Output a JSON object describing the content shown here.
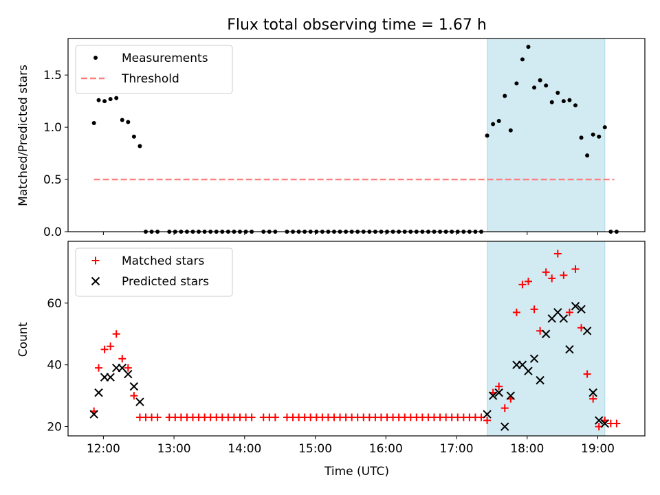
{
  "chart_data": [
    {
      "type": "scatter",
      "title": "Flux total observing time = 1.67 h",
      "xlabel": "",
      "ylabel": "Matched/Predicted stars",
      "xlim": [
        "11:30",
        "19:40"
      ],
      "ylim": [
        0,
        1.85
      ],
      "x_ticks": [
        "12:00",
        "13:00",
        "14:00",
        "15:00",
        "16:00",
        "17:00",
        "18:00",
        "19:00"
      ],
      "y_ticks": [
        0.0,
        0.5,
        1.0,
        1.5
      ],
      "y_tick_labels": [
        "0.0",
        "0.5",
        "1.0",
        "1.5"
      ],
      "legend_position": "top-left",
      "shaded_region": {
        "x_start": "17:26",
        "x_end": "19:06",
        "color": "#add8e6"
      },
      "threshold": {
        "name": "Threshold",
        "y": 0.5,
        "x_start": "11:52",
        "x_end": "19:14",
        "color": "#ff7f7f",
        "style": "dashed"
      },
      "series": [
        {
          "name": "Measurements",
          "color": "#000000",
          "marker": "dot",
          "points": [
            [
              "11:52",
              1.04
            ],
            [
              "11:56",
              1.26
            ],
            [
              "12:01",
              1.25
            ],
            [
              "12:06",
              1.27
            ],
            [
              "12:11",
              1.28
            ],
            [
              "12:16",
              1.07
            ],
            [
              "12:21",
              1.05
            ],
            [
              "12:26",
              0.91
            ],
            [
              "12:31",
              0.82
            ],
            [
              "12:36",
              0
            ],
            [
              "12:41",
              0
            ],
            [
              "12:46",
              0
            ],
            [
              "12:56",
              0
            ],
            [
              "13:01",
              0
            ],
            [
              "13:06",
              0
            ],
            [
              "13:11",
              0
            ],
            [
              "13:16",
              0
            ],
            [
              "13:21",
              0
            ],
            [
              "13:26",
              0
            ],
            [
              "13:31",
              0
            ],
            [
              "13:36",
              0
            ],
            [
              "13:41",
              0
            ],
            [
              "13:46",
              0
            ],
            [
              "13:51",
              0
            ],
            [
              "13:56",
              0
            ],
            [
              "14:01",
              0
            ],
            [
              "14:06",
              0
            ],
            [
              "14:16",
              0
            ],
            [
              "14:21",
              0
            ],
            [
              "14:26",
              0
            ],
            [
              "14:36",
              0
            ],
            [
              "14:41",
              0
            ],
            [
              "14:46",
              0
            ],
            [
              "14:51",
              0
            ],
            [
              "14:56",
              0
            ],
            [
              "15:01",
              0
            ],
            [
              "15:06",
              0
            ],
            [
              "15:11",
              0
            ],
            [
              "15:16",
              0
            ],
            [
              "15:21",
              0
            ],
            [
              "15:26",
              0
            ],
            [
              "15:31",
              0
            ],
            [
              "15:36",
              0
            ],
            [
              "15:41",
              0
            ],
            [
              "15:46",
              0
            ],
            [
              "15:51",
              0
            ],
            [
              "15:56",
              0
            ],
            [
              "16:01",
              0
            ],
            [
              "16:06",
              0
            ],
            [
              "16:11",
              0
            ],
            [
              "16:16",
              0
            ],
            [
              "16:21",
              0
            ],
            [
              "16:26",
              0
            ],
            [
              "16:31",
              0
            ],
            [
              "16:36",
              0
            ],
            [
              "16:41",
              0
            ],
            [
              "16:46",
              0
            ],
            [
              "16:51",
              0
            ],
            [
              "16:56",
              0
            ],
            [
              "17:01",
              0
            ],
            [
              "17:06",
              0
            ],
            [
              "17:11",
              0
            ],
            [
              "17:16",
              0
            ],
            [
              "17:21",
              0
            ],
            [
              "17:26",
              0.92
            ],
            [
              "17:31",
              1.03
            ],
            [
              "17:36",
              1.06
            ],
            [
              "17:41",
              1.3
            ],
            [
              "17:46",
              0.97
            ],
            [
              "17:51",
              1.42
            ],
            [
              "17:56",
              1.65
            ],
            [
              "18:01",
              1.77
            ],
            [
              "18:06",
              1.38
            ],
            [
              "18:11",
              1.45
            ],
            [
              "18:16",
              1.4
            ],
            [
              "18:21",
              1.24
            ],
            [
              "18:26",
              1.33
            ],
            [
              "18:31",
              1.25
            ],
            [
              "18:36",
              1.26
            ],
            [
              "18:41",
              1.21
            ],
            [
              "18:46",
              0.9
            ],
            [
              "18:51",
              0.73
            ],
            [
              "18:56",
              0.93
            ],
            [
              "19:01",
              0.91
            ],
            [
              "19:06",
              1.0
            ],
            [
              "19:11",
              0
            ],
            [
              "19:16",
              0
            ]
          ]
        }
      ]
    },
    {
      "type": "scatter",
      "title": "",
      "xlabel": "Time (UTC)",
      "ylabel": "Count",
      "xlim": [
        "11:30",
        "19:40"
      ],
      "ylim": [
        17,
        80
      ],
      "x_ticks": [
        "12:00",
        "13:00",
        "14:00",
        "15:00",
        "16:00",
        "17:00",
        "18:00",
        "19:00"
      ],
      "y_ticks": [
        20,
        40,
        60
      ],
      "y_tick_labels": [
        "20",
        "40",
        "60"
      ],
      "legend_position": "top-left",
      "shaded_region": {
        "x_start": "17:26",
        "x_end": "19:06",
        "color": "#add8e6"
      },
      "series": [
        {
          "name": "Matched stars",
          "color": "#ff0000",
          "marker": "plus",
          "points": [
            [
              "11:52",
              25
            ],
            [
              "11:56",
              39
            ],
            [
              "12:01",
              45
            ],
            [
              "12:06",
              46
            ],
            [
              "12:11",
              50
            ],
            [
              "12:16",
              42
            ],
            [
              "12:21",
              39
            ],
            [
              "12:26",
              30
            ],
            [
              "12:31",
              23
            ],
            [
              "12:36",
              23
            ],
            [
              "12:41",
              23
            ],
            [
              "12:46",
              23
            ],
            [
              "12:56",
              23
            ],
            [
              "13:01",
              23
            ],
            [
              "13:06",
              23
            ],
            [
              "13:11",
              23
            ],
            [
              "13:16",
              23
            ],
            [
              "13:21",
              23
            ],
            [
              "13:26",
              23
            ],
            [
              "13:31",
              23
            ],
            [
              "13:36",
              23
            ],
            [
              "13:41",
              23
            ],
            [
              "13:46",
              23
            ],
            [
              "13:51",
              23
            ],
            [
              "13:56",
              23
            ],
            [
              "14:01",
              23
            ],
            [
              "14:06",
              23
            ],
            [
              "14:16",
              23
            ],
            [
              "14:21",
              23
            ],
            [
              "14:26",
              23
            ],
            [
              "14:36",
              23
            ],
            [
              "14:41",
              23
            ],
            [
              "14:46",
              23
            ],
            [
              "14:51",
              23
            ],
            [
              "14:56",
              23
            ],
            [
              "15:01",
              23
            ],
            [
              "15:06",
              23
            ],
            [
              "15:11",
              23
            ],
            [
              "15:16",
              23
            ],
            [
              "15:21",
              23
            ],
            [
              "15:26",
              23
            ],
            [
              "15:31",
              23
            ],
            [
              "15:36",
              23
            ],
            [
              "15:41",
              23
            ],
            [
              "15:46",
              23
            ],
            [
              "15:51",
              23
            ],
            [
              "15:56",
              23
            ],
            [
              "16:01",
              23
            ],
            [
              "16:06",
              23
            ],
            [
              "16:11",
              23
            ],
            [
              "16:16",
              23
            ],
            [
              "16:21",
              23
            ],
            [
              "16:26",
              23
            ],
            [
              "16:31",
              23
            ],
            [
              "16:36",
              23
            ],
            [
              "16:41",
              23
            ],
            [
              "16:46",
              23
            ],
            [
              "16:51",
              23
            ],
            [
              "16:56",
              23
            ],
            [
              "17:01",
              23
            ],
            [
              "17:06",
              23
            ],
            [
              "17:11",
              23
            ],
            [
              "17:16",
              23
            ],
            [
              "17:21",
              23
            ],
            [
              "17:26",
              22
            ],
            [
              "17:31",
              31
            ],
            [
              "17:36",
              33
            ],
            [
              "17:41",
              26
            ],
            [
              "17:46",
              29
            ],
            [
              "17:51",
              57
            ],
            [
              "17:56",
              66
            ],
            [
              "18:01",
              67
            ],
            [
              "18:06",
              58
            ],
            [
              "18:11",
              51
            ],
            [
              "18:16",
              70
            ],
            [
              "18:21",
              68
            ],
            [
              "18:26",
              76
            ],
            [
              "18:31",
              69
            ],
            [
              "18:36",
              57
            ],
            [
              "18:41",
              71
            ],
            [
              "18:46",
              52
            ],
            [
              "18:51",
              37
            ],
            [
              "18:56",
              29
            ],
            [
              "19:01",
              20
            ],
            [
              "19:06",
              22
            ],
            [
              "19:11",
              21
            ],
            [
              "19:16",
              21
            ]
          ]
        },
        {
          "name": "Predicted stars",
          "color": "#000000",
          "marker": "x",
          "points": [
            [
              "11:52",
              24
            ],
            [
              "11:56",
              31
            ],
            [
              "12:01",
              36
            ],
            [
              "12:06",
              36
            ],
            [
              "12:11",
              39
            ],
            [
              "12:16",
              39
            ],
            [
              "12:21",
              37
            ],
            [
              "12:26",
              33
            ],
            [
              "12:31",
              28
            ],
            [
              "17:26",
              24
            ],
            [
              "17:31",
              30
            ],
            [
              "17:36",
              31
            ],
            [
              "17:41",
              20
            ],
            [
              "17:46",
              30
            ],
            [
              "17:51",
              40
            ],
            [
              "17:56",
              40
            ],
            [
              "18:01",
              38
            ],
            [
              "18:06",
              42
            ],
            [
              "18:11",
              35
            ],
            [
              "18:16",
              50
            ],
            [
              "18:21",
              55
            ],
            [
              "18:26",
              57
            ],
            [
              "18:31",
              55
            ],
            [
              "18:36",
              45
            ],
            [
              "18:41",
              59
            ],
            [
              "18:46",
              58
            ],
            [
              "18:51",
              51
            ],
            [
              "18:56",
              31
            ],
            [
              "19:01",
              22
            ],
            [
              "19:06",
              21
            ]
          ]
        }
      ]
    }
  ]
}
